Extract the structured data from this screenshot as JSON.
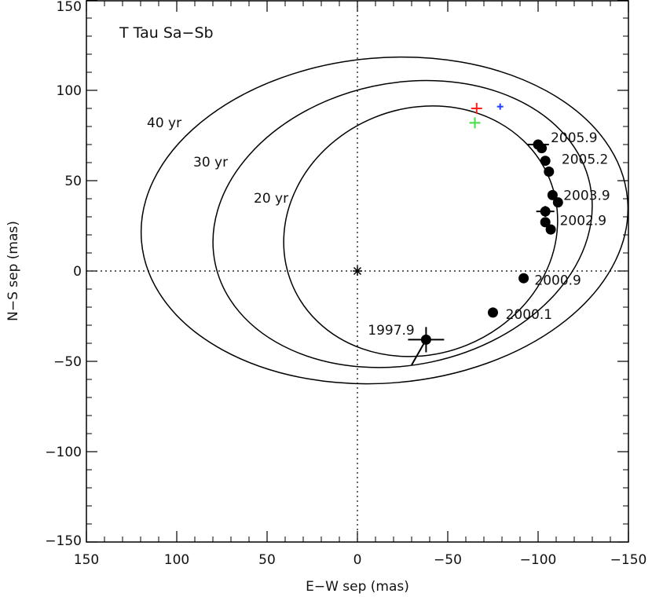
{
  "chart_data": {
    "type": "scatter",
    "title": "T Tau Sa−Sb",
    "xlabel": "E−W sep (mas)",
    "ylabel": "N−S sep (mas)",
    "xlim": [
      150,
      -150
    ],
    "ylim": [
      -150,
      150
    ],
    "x_ticks": [
      150,
      100,
      50,
      0,
      -50,
      -100,
      -150
    ],
    "x_tick_labels": [
      "150",
      "100",
      "50",
      "0",
      "−50",
      "−100",
      "−150"
    ],
    "y_ticks": [
      150,
      100,
      50,
      0,
      -50,
      -100,
      -150
    ],
    "y_tick_labels": [
      "150",
      "100",
      "50",
      "0",
      "−50",
      "−100",
      "−150"
    ],
    "grid": false,
    "reference_lines": {
      "x": 0,
      "y": 0,
      "style": "dotted"
    },
    "origin_marker": {
      "x": 0,
      "y": 0,
      "symbol": "asterisk"
    },
    "orbits": [
      {
        "label": "40 yr",
        "center": [
          -15,
          28
        ],
        "semi_axis_x": 135,
        "semi_axis_y": 90,
        "rotation_deg": -5
      },
      {
        "label": "30 yr",
        "center": [
          -25,
          26
        ],
        "semi_axis_x": 106,
        "semi_axis_y": 78,
        "rotation_deg": -12
      },
      {
        "label": "20 yr",
        "center": [
          -35,
          22
        ],
        "semi_axis_x": 77,
        "semi_axis_y": 68,
        "rotation_deg": -22
      }
    ],
    "observations": [
      {
        "x": -38,
        "y": -38,
        "x_err": 10,
        "y_err": 7
      },
      {
        "x": -75,
        "y": -23
      },
      {
        "x": -92,
        "y": -4
      },
      {
        "x": -104,
        "y": 33,
        "x_err": 5,
        "y_err": 3
      },
      {
        "x": -104,
        "y": 27
      },
      {
        "x": -107,
        "y": 23
      },
      {
        "x": -108,
        "y": 42
      },
      {
        "x": -111,
        "y": 38
      },
      {
        "x": -106,
        "y": 55
      },
      {
        "x": -104,
        "y": 61
      },
      {
        "x": -102,
        "y": 68
      },
      {
        "x": -100,
        "y": 70,
        "x_err": 6,
        "y_err": 2
      }
    ],
    "epoch_labels": [
      {
        "text": "1997.9",
        "x": -12,
        "y": -32
      },
      {
        "text": "2000.1",
        "x": -82,
        "y": -24
      },
      {
        "text": "2000.9",
        "x": -98,
        "y": -5
      },
      {
        "text": "2002.9",
        "x": -112,
        "y": 28
      },
      {
        "text": "2003.9",
        "x": -114,
        "y": 42
      },
      {
        "text": "2005.2",
        "x": -113,
        "y": 62
      },
      {
        "text": "2005.9",
        "x": -107,
        "y": 74
      }
    ],
    "colored_markers": [
      {
        "x": -66,
        "y": 90,
        "color": "#ff2020",
        "symbol": "plus"
      },
      {
        "x": -65,
        "y": 82,
        "color": "#40e040",
        "symbol": "plus"
      },
      {
        "x": -79,
        "y": 91,
        "color": "#2040ff",
        "symbol": "plus-small"
      }
    ]
  }
}
